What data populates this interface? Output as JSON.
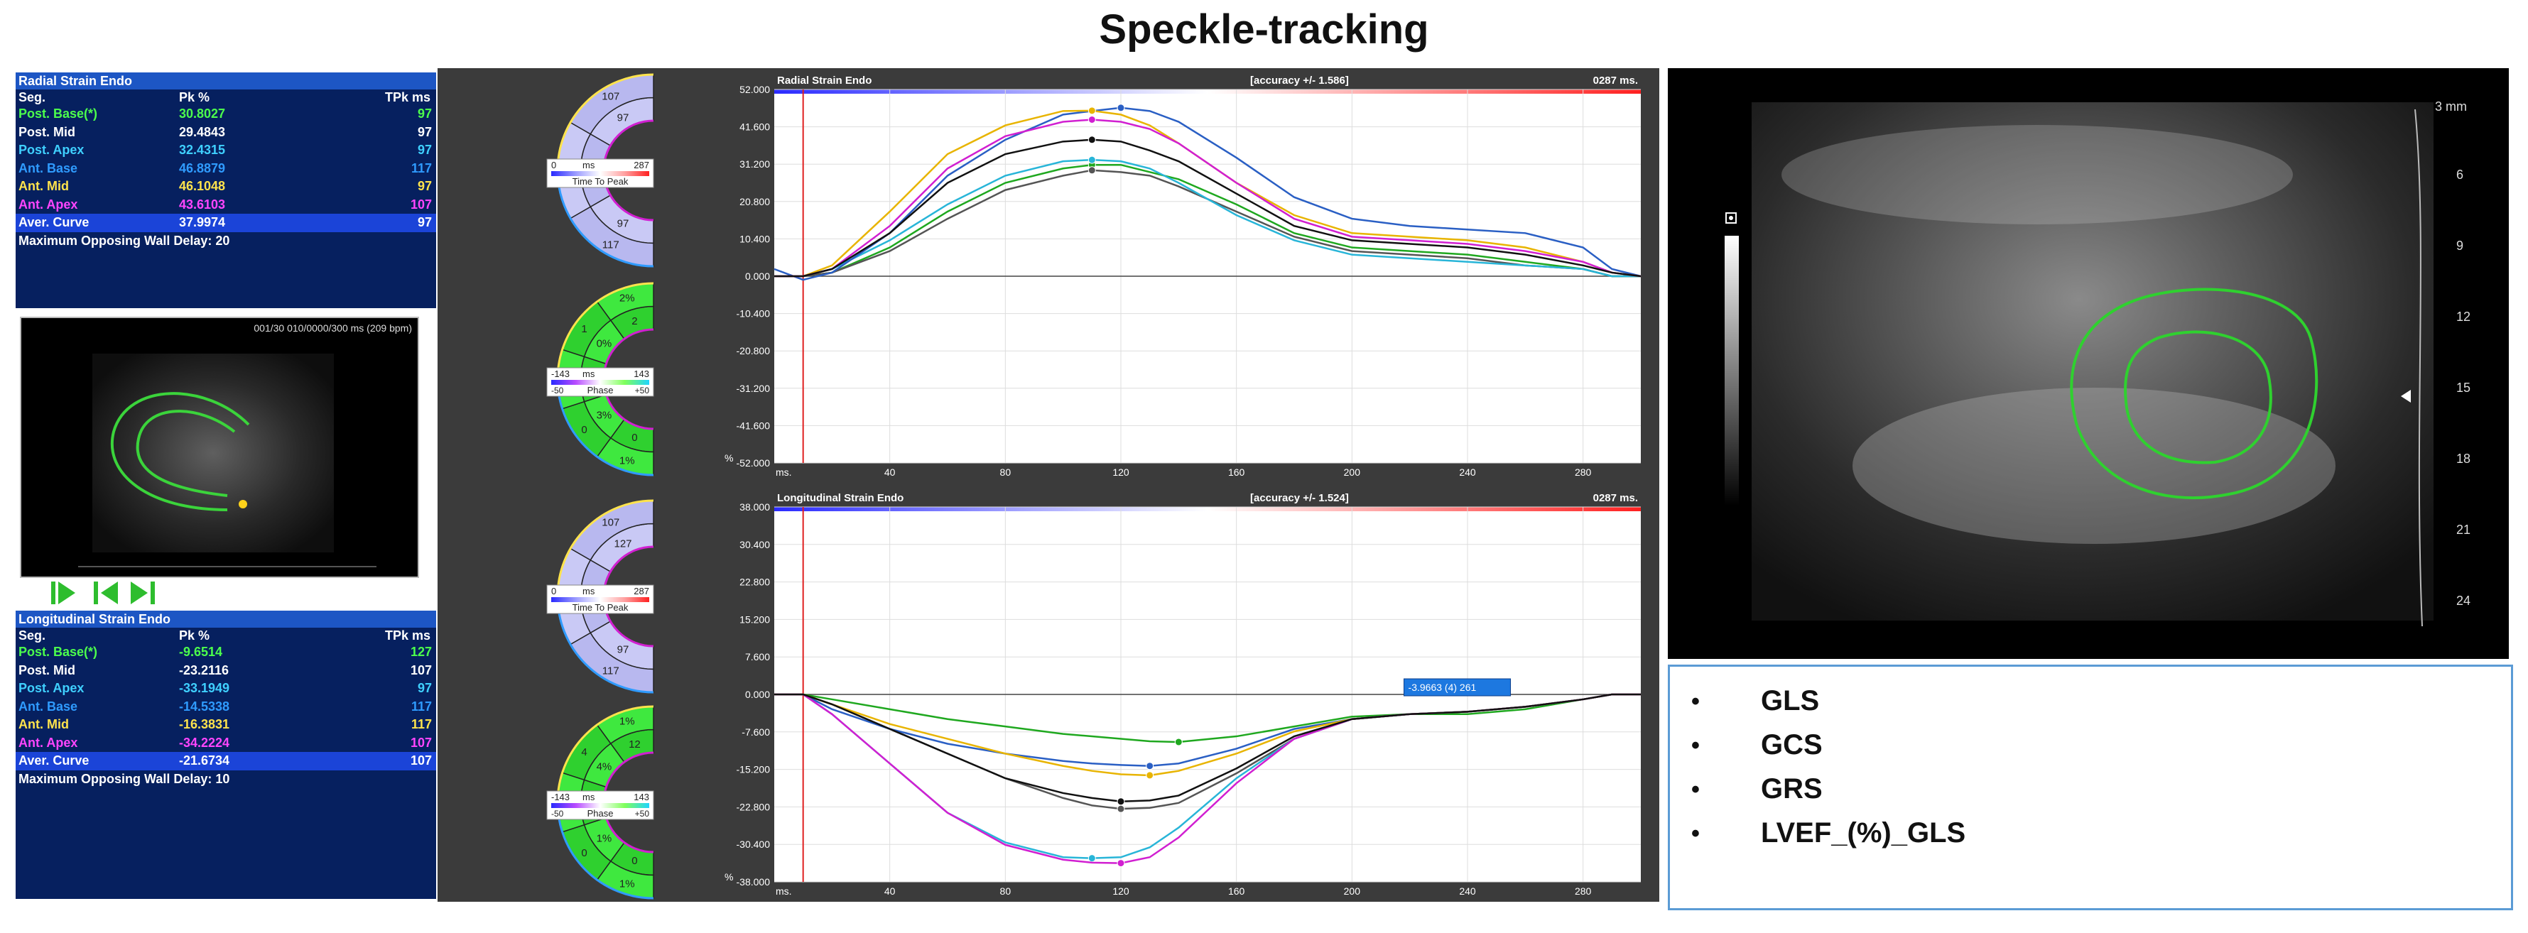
{
  "title": "Speckle-tracking",
  "radial_table": {
    "header": "Radial Strain Endo",
    "col_seg": "Seg.",
    "col_pk": "Pk %",
    "col_tpk": "TPk ms",
    "rows": [
      {
        "seg": "Post. Base(*)",
        "pk": "30.8027",
        "tpk": "97",
        "color": "#4cff4c"
      },
      {
        "seg": "Post. Mid",
        "pk": "29.4843",
        "tpk": "97",
        "color": "#ffffff"
      },
      {
        "seg": "Post. Apex",
        "pk": "32.4315",
        "tpk": "97",
        "color": "#3fd0ff"
      },
      {
        "seg": "Ant. Base",
        "pk": "46.8879",
        "tpk": "117",
        "color": "#2f9bff"
      },
      {
        "seg": "Ant. Mid",
        "pk": "46.1048",
        "tpk": "97",
        "color": "#ffe34c"
      },
      {
        "seg": "Ant. Apex",
        "pk": "43.6103",
        "tpk": "107",
        "color": "#ff45ff"
      },
      {
        "seg": "Aver. Curve",
        "pk": "37.9974",
        "tpk": "97",
        "color": "#ffffff"
      }
    ],
    "footer": "Maximum Opposing Wall Delay: 20"
  },
  "longitudinal_table": {
    "header": "Longitudinal Strain Endo",
    "col_seg": "Seg.",
    "col_pk": "Pk %",
    "col_tpk": "TPk ms",
    "rows": [
      {
        "seg": "Post. Base(*)",
        "pk": "-9.6514",
        "tpk": "127",
        "color": "#4cff4c"
      },
      {
        "seg": "Post. Mid",
        "pk": "-23.2116",
        "tpk": "107",
        "color": "#ffffff"
      },
      {
        "seg": "Post. Apex",
        "pk": "-33.1949",
        "tpk": "97",
        "color": "#3fd0ff"
      },
      {
        "seg": "Ant. Base",
        "pk": "-14.5338",
        "tpk": "117",
        "color": "#2f9bff"
      },
      {
        "seg": "Ant. Mid",
        "pk": "-16.3831",
        "tpk": "117",
        "color": "#ffe34c"
      },
      {
        "seg": "Ant. Apex",
        "pk": "-34.2224",
        "tpk": "107",
        "color": "#ff45ff"
      },
      {
        "seg": "Aver. Curve",
        "pk": "-21.6734",
        "tpk": "107",
        "color": "#ffffff"
      }
    ],
    "footer": "Maximum Opposing Wall Delay: 10"
  },
  "echo_thumb": {
    "caption": "001/30  010/0000/300 ms (209 bpm)"
  },
  "playback_icons": [
    "play-icon",
    "skip-start-icon",
    "skip-end-icon"
  ],
  "bullseyes": [
    {
      "values": [
        "117",
        "97",
        "107",
        "97",
        "97",
        "97"
      ],
      "scale_min": "0",
      "scale_unit": "ms",
      "scale_max": "287",
      "scale_label": "Time To Peak",
      "type": "ttp"
    },
    {
      "values": [
        "1%",
        "0",
        "0%",
        "1",
        "2%",
        "0",
        "3%",
        "1",
        "0%",
        "2"
      ],
      "scale_min": "-143",
      "scale_unit": "ms",
      "scale_max": "143",
      "scale_sub_min": "-50",
      "scale_sub_max": "+50",
      "scale_label": "Phase",
      "type": "phase"
    },
    {
      "values": [
        "117",
        "117",
        "107",
        "97",
        "107",
        "127"
      ],
      "scale_min": "0",
      "scale_unit": "ms",
      "scale_max": "287",
      "scale_label": "Time To Peak",
      "type": "ttp"
    },
    {
      "values": [
        "1%",
        "0",
        "1%",
        "4",
        "1%",
        "0",
        "1%",
        "1",
        "4%",
        "12"
      ],
      "scale_min": "-143",
      "scale_unit": "ms",
      "scale_max": "143",
      "scale_sub_min": "-50",
      "scale_sub_max": "+50",
      "scale_label": "Phase",
      "type": "phase"
    }
  ],
  "chart_data": [
    {
      "type": "line",
      "title": "Radial Strain Endo",
      "accuracy": "[accuracy +/- 1.586]",
      "time_label": "0287 ms.",
      "xlabel": "ms.",
      "ylabel": "%",
      "xlim": [
        0,
        300
      ],
      "ylim": [
        -52,
        52
      ],
      "yticks": [
        "52.000",
        "41.600",
        "31.200",
        "20.800",
        "10.400",
        "0.000",
        "-10.400",
        "-20.800",
        "-31.200",
        "-41.600",
        "-52.000"
      ],
      "xticks": [
        "40",
        "80",
        "120",
        "160",
        "200",
        "240",
        "280"
      ],
      "x": [
        0,
        10,
        20,
        40,
        60,
        80,
        100,
        110,
        120,
        130,
        140,
        160,
        180,
        200,
        220,
        240,
        260,
        280,
        290,
        300
      ],
      "series": [
        {
          "color": "#1fa81f",
          "values": [
            0,
            0,
            1,
            8,
            18,
            26,
            30,
            31,
            31,
            29,
            27,
            20,
            12,
            8,
            7,
            6,
            4,
            2,
            0,
            0
          ]
        },
        {
          "color": "#555555",
          "values": [
            0,
            0,
            1,
            7,
            16,
            24,
            28,
            29.5,
            29,
            28,
            25,
            18,
            11,
            7,
            6,
            5,
            3,
            2,
            0,
            0
          ]
        },
        {
          "color": "#28b5d8",
          "values": [
            0,
            0,
            2,
            10,
            20,
            28,
            32,
            32.4,
            32,
            30,
            26,
            17,
            10,
            6,
            5,
            4,
            3,
            2,
            0,
            0
          ]
        },
        {
          "color": "#2a5fc4",
          "values": [
            2,
            -1,
            1,
            12,
            28,
            38,
            45,
            46,
            46.9,
            46,
            43,
            33,
            22,
            16,
            14,
            13,
            12,
            8,
            2,
            0
          ]
        },
        {
          "color": "#e8b400",
          "values": [
            0,
            0,
            3,
            18,
            34,
            42,
            46,
            46.1,
            45,
            42,
            37,
            26,
            17,
            12,
            11,
            10,
            8,
            4,
            1,
            0
          ]
        },
        {
          "color": "#d11fd1",
          "values": [
            0,
            0,
            2,
            14,
            30,
            39,
            43,
            43.6,
            43,
            41,
            37,
            26,
            16,
            11,
            10,
            9,
            7,
            4,
            1,
            0
          ]
        },
        {
          "color": "#111111",
          "values": [
            0,
            0,
            2,
            12,
            26,
            34,
            37.5,
            38,
            37.5,
            35,
            32,
            23,
            14,
            10,
            9,
            8,
            6,
            3,
            1,
            0
          ]
        }
      ]
    },
    {
      "type": "line",
      "title": "Longitudinal Strain Endo",
      "accuracy": "[accuracy +/- 1.524]",
      "time_label": "0287 ms.",
      "xlabel": "ms.",
      "ylabel": "%",
      "xlim": [
        0,
        300
      ],
      "ylim": [
        -38,
        38
      ],
      "yticks": [
        "38.000",
        "30.400",
        "22.800",
        "15.200",
        "7.600",
        "0.000",
        "-7.600",
        "-15.200",
        "-22.800",
        "-30.400",
        "-38.000"
      ],
      "xticks": [
        "40",
        "80",
        "120",
        "160",
        "200",
        "240",
        "280"
      ],
      "tooltip": "-3.9663  (4)  261",
      "x": [
        0,
        10,
        20,
        40,
        60,
        80,
        100,
        110,
        120,
        130,
        140,
        160,
        180,
        200,
        220,
        240,
        260,
        280,
        290,
        300
      ],
      "series": [
        {
          "color": "#1fa81f",
          "values": [
            0,
            0,
            -1,
            -3,
            -5,
            -6.5,
            -8,
            -8.5,
            -9,
            -9.5,
            -9.65,
            -8.5,
            -6.5,
            -4.5,
            -4,
            -4,
            -3,
            -1,
            0,
            0
          ]
        },
        {
          "color": "#555555",
          "values": [
            0,
            0,
            -2,
            -7,
            -12,
            -17,
            -21,
            -22.5,
            -23.2,
            -23,
            -22,
            -16,
            -9,
            -5,
            -4,
            -3.5,
            -2.5,
            -1,
            0,
            0
          ]
        },
        {
          "color": "#28b5d8",
          "values": [
            0,
            0,
            -4,
            -14,
            -24,
            -30,
            -33,
            -33.2,
            -33,
            -31,
            -27,
            -17,
            -9,
            -5,
            -4,
            -3.5,
            -2.5,
            -1,
            0,
            0
          ]
        },
        {
          "color": "#2a5fc4",
          "values": [
            0,
            0,
            -3,
            -7,
            -10,
            -12,
            -13.5,
            -14,
            -14.3,
            -14.5,
            -14,
            -11,
            -7,
            -5,
            -4,
            -3.5,
            -2.5,
            -1,
            0,
            0
          ]
        },
        {
          "color": "#e8b400",
          "values": [
            0,
            0,
            -2,
            -6,
            -9,
            -12,
            -14.5,
            -15.5,
            -16.2,
            -16.4,
            -15.5,
            -12,
            -7.5,
            -5,
            -4,
            -3.5,
            -2.5,
            -1,
            0,
            0
          ]
        },
        {
          "color": "#d11fd1",
          "values": [
            0,
            0,
            -4,
            -14,
            -24,
            -30.5,
            -33.5,
            -34.1,
            -34.2,
            -33,
            -29,
            -18,
            -9,
            -5,
            -4,
            -3.5,
            -2.5,
            -1,
            0,
            0
          ]
        },
        {
          "color": "#111111",
          "values": [
            0,
            0,
            -2,
            -7,
            -12,
            -17,
            -20,
            -21,
            -21.7,
            -21.5,
            -20.5,
            -15,
            -8.5,
            -5,
            -4,
            -3.5,
            -2.5,
            -1,
            0,
            0
          ]
        }
      ]
    }
  ],
  "echo_main": {
    "depth_unit": "3 mm",
    "depth_ticks": [
      "6",
      "9",
      "12",
      "15",
      "18",
      "21",
      "24"
    ]
  },
  "bullets": [
    "GLS",
    "GCS",
    "GRS",
    "LVEF_(%)_GLS"
  ]
}
